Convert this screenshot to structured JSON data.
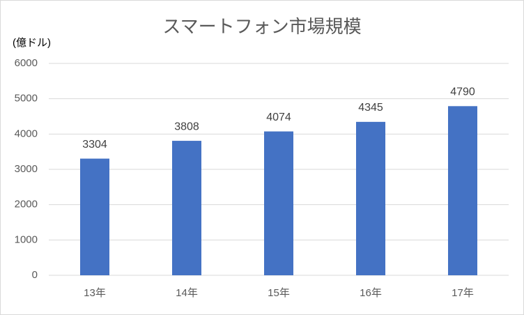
{
  "chart_data": {
    "type": "bar",
    "title": "スマートフォン市場規模",
    "y_label": "(億ドル)",
    "categories": [
      "13年",
      "14年",
      "15年",
      "16年",
      "17年"
    ],
    "values": [
      3304,
      3808,
      4074,
      4345,
      4790
    ],
    "color": "#4472c4",
    "ylim": [
      0,
      6000
    ],
    "yticks": [
      0,
      1000,
      2000,
      3000,
      4000,
      5000,
      6000
    ],
    "grid": true
  }
}
